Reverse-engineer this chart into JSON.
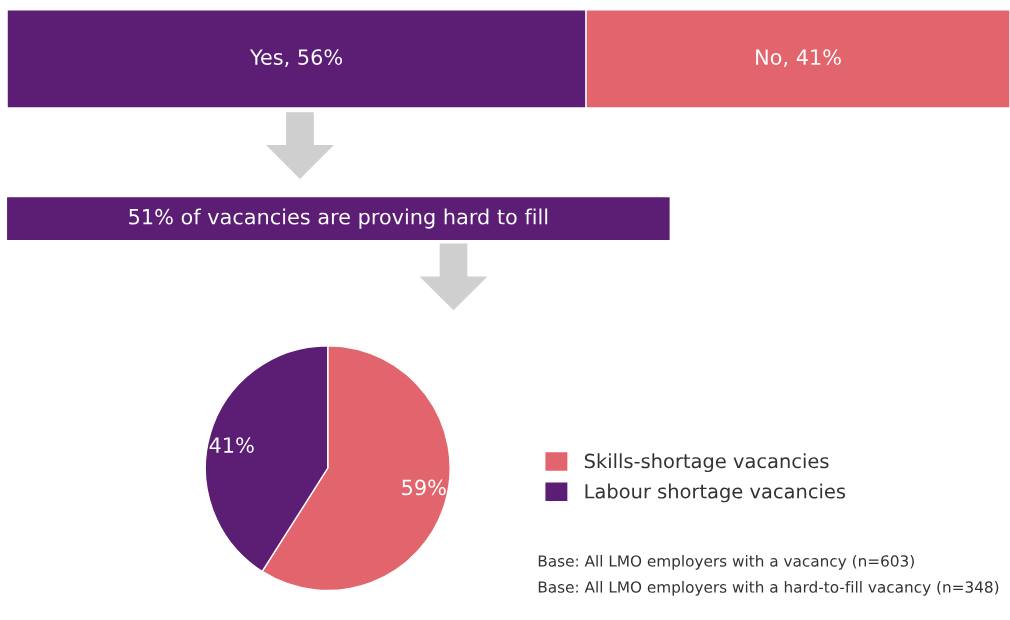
{
  "chart_data": [
    {
      "type": "bar",
      "orientation": "horizontal",
      "stacked": true,
      "categories": [
        null
      ],
      "series": [
        {
          "color": "#5c1e74",
          "values": [
            56
          ],
          "value_labels": [
            "Yes, 56%"
          ]
        },
        {
          "color": "#e2646d",
          "values": [
            41
          ],
          "value_labels": [
            "No, 41%"
          ]
        }
      ],
      "tick_labels": false,
      "legend": false
    },
    {
      "type": "other",
      "color": "#5c1e74",
      "annotations": [
        "51% of vacancies are proving hard to fill"
      ]
    },
    {
      "type": "pie",
      "categories": [
        "Skills-shortage vacancies",
        "Labour shortage vacancies"
      ],
      "values": [
        59,
        41
      ],
      "colors": [
        "#e2646d",
        "#5c1e74"
      ],
      "value_labels": [
        "59%",
        "41%"
      ],
      "legend": "right",
      "annotations": [
        "Base: All LMO employers with a vacancy (n=603)",
        "Base: All LMO employers with a hard-to-fill vacancy (n=348)"
      ]
    }
  ]
}
